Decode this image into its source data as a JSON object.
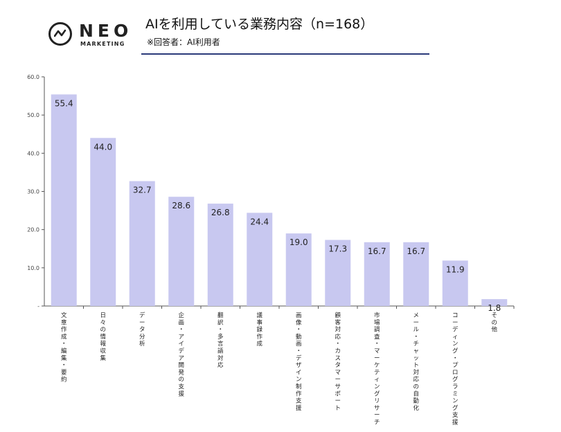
{
  "brand": {
    "word": "NEO",
    "sub": "MARKETING",
    "icon": "activity-icon"
  },
  "header": {
    "title": "AIを利用している業務内容（n=168）",
    "subtitle": "※回答者：AI利用者"
  },
  "colors": {
    "bar": "#c8c8f0",
    "axis": "#555555",
    "rule": "#2a3a7a"
  },
  "chart_data": {
    "type": "bar",
    "title": "AIを利用している業務内容（n=168）",
    "xlabel": "",
    "ylabel": "",
    "ylim": [
      0,
      60
    ],
    "yticks": [
      "-",
      "10.0",
      "20.0",
      "30.0",
      "40.0",
      "50.0",
      "60.0"
    ],
    "grid": false,
    "categories": [
      "文章作成・編集・要約",
      "日々の情報収集",
      "データ分析",
      "企画・アイデア開発の支援",
      "翻訳・多言語対応",
      "議事録作成",
      "画像・動画・デザイン制作支援",
      "顧客対応・カスタマーサポート",
      "市場調査・マーケティングリサーチ",
      "メール・チャット対応の自動化",
      "コーディング・プログラミング支援",
      "その他"
    ],
    "values": [
      55.4,
      44.0,
      32.7,
      28.6,
      26.8,
      24.4,
      19.0,
      17.3,
      16.7,
      16.7,
      11.9,
      1.8
    ],
    "labels": [
      "55.4",
      "44.0",
      "32.7",
      "28.6",
      "26.8",
      "24.4",
      "19.0",
      "17.3",
      "16.7",
      "16.7",
      "11.9",
      "1.8"
    ]
  }
}
